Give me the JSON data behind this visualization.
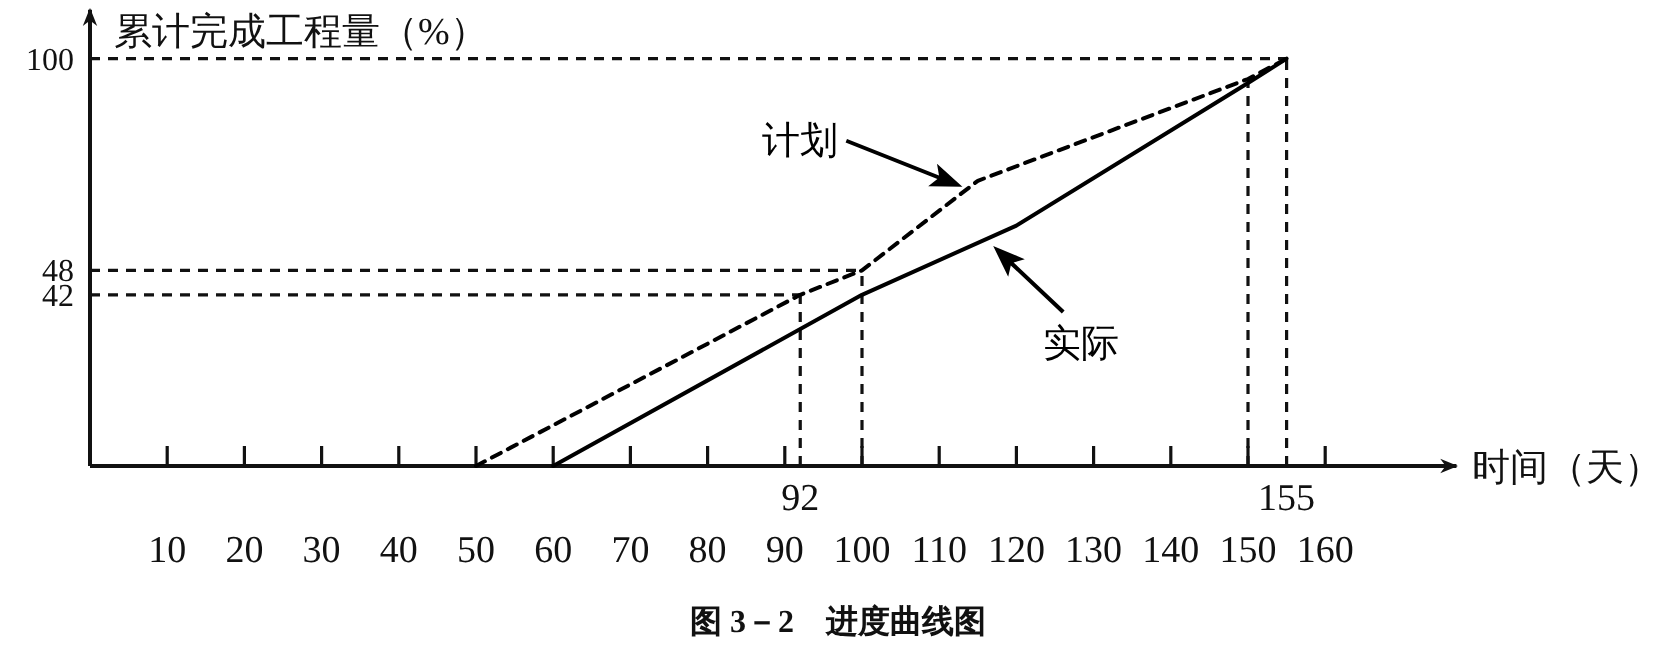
{
  "chart_data": {
    "type": "line",
    "xlabel": "时间（天）",
    "ylabel": "累计完成工程量（%）",
    "x": [
      50,
      92,
      100,
      115,
      150,
      155
    ],
    "series": [
      {
        "name": "计划",
        "color": "#000000",
        "line_style": "dashed",
        "values": [
          0,
          42,
          48,
          70,
          95,
          100
        ]
      },
      {
        "name": "实际",
        "color": "#000000",
        "line_style": "solid",
        "x": [
          60,
          100,
          120,
          150,
          155
        ],
        "values": [
          0,
          42,
          59,
          94,
          100
        ]
      }
    ],
    "xlim": [
      0,
      177
    ],
    "ylim": [
      0,
      112
    ],
    "xticks": [
      10,
      20,
      30,
      40,
      50,
      60,
      70,
      80,
      90,
      100,
      110,
      120,
      130,
      140,
      150,
      160
    ],
    "yticks": [
      42,
      48,
      100
    ],
    "ref_lines": [
      {
        "axis": "y",
        "value": 100,
        "line_style": "dashed"
      },
      {
        "axis": "y",
        "value": 48,
        "line_style": "dashed"
      },
      {
        "axis": "y",
        "value": 42,
        "line_style": "dashed"
      },
      {
        "axis": "x",
        "value": 92,
        "label": "92",
        "line_style": "dashed"
      },
      {
        "axis": "x",
        "value": 100,
        "line_style": "dashed"
      },
      {
        "axis": "x",
        "value": 150,
        "line_style": "dashed"
      },
      {
        "axis": "x",
        "value": 155,
        "label": "155",
        "line_style": "dashed"
      }
    ],
    "grid": false,
    "marker": "none",
    "annotations": [
      "图 3－2　进度曲线图"
    ]
  }
}
